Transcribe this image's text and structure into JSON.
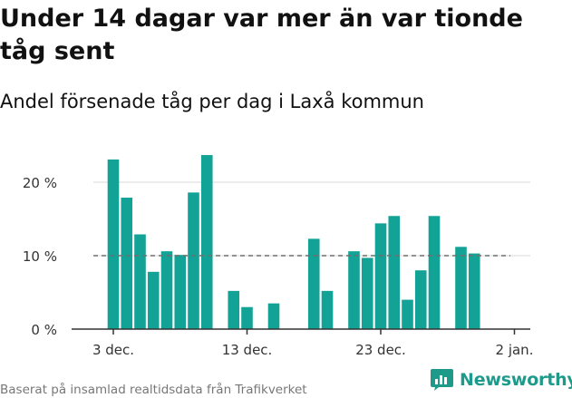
{
  "header": {
    "title": "Under 14 dagar var mer än var tionde tåg sent",
    "subtitle": "Andel försenade tåg per dag i Laxå kommun"
  },
  "footer": {
    "source": "Baserat på insamlad realtidsdata från Trafikverket",
    "brand": "Newsworthy"
  },
  "colors": {
    "bar": "#13a396",
    "reference_line": "#6e6e6e",
    "grid": "#d9d9d9",
    "brand": "#1d9a8a"
  },
  "chart_data": {
    "type": "bar",
    "title": "Under 14 dagar var mer än var tionde tåg sent",
    "subtitle": "Andel försenade tåg per dag i Laxå kommun",
    "xlabel": "",
    "ylabel": "",
    "x": [
      "2023-12-03",
      "2023-12-04",
      "2023-12-05",
      "2023-12-06",
      "2023-12-07",
      "2023-12-08",
      "2023-12-09",
      "2023-12-10",
      "2023-12-11",
      "2023-12-12",
      "2023-12-13",
      "2023-12-14",
      "2023-12-15",
      "2023-12-16",
      "2023-12-17",
      "2023-12-18",
      "2023-12-19",
      "2023-12-20",
      "2023-12-21",
      "2023-12-22",
      "2023-12-23",
      "2023-12-24",
      "2023-12-25",
      "2023-12-26",
      "2023-12-27",
      "2023-12-28",
      "2023-12-29",
      "2023-12-30",
      "2023-12-31",
      "2024-01-01",
      "2024-01-02"
    ],
    "values": [
      23.1,
      17.9,
      12.9,
      7.8,
      10.6,
      10.1,
      18.6,
      23.7,
      null,
      5.2,
      3.0,
      null,
      3.5,
      null,
      null,
      12.3,
      5.2,
      null,
      10.6,
      9.7,
      14.4,
      15.4,
      4.0,
      8.0,
      15.4,
      null,
      11.2,
      10.3,
      null,
      null,
      null
    ],
    "unit": "%",
    "ylim": [
      0,
      25
    ],
    "yticks": [
      0,
      10,
      20
    ],
    "ytick_labels": [
      "0 %",
      "10 %",
      "20 %"
    ],
    "xticks": [
      "2023-12-03",
      "2023-12-13",
      "2023-12-23",
      "2024-01-02"
    ],
    "xtick_labels": [
      "3 dec.",
      "13 dec.",
      "23 dec.",
      "2 jan."
    ],
    "reference_line": {
      "value": 10,
      "style": "dashed"
    },
    "grid": "horizontal",
    "legend": "none"
  }
}
